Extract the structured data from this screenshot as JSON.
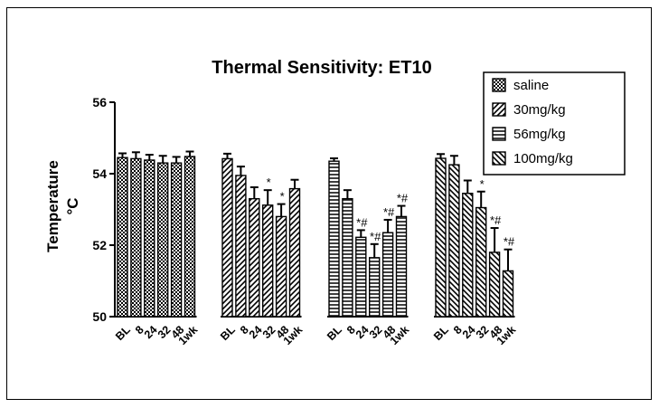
{
  "chart_data": {
    "type": "bar",
    "title": "Thermal Sensitivity: ET10",
    "ylabel_line1": "Temperature",
    "ylabel_line2": "°C",
    "xlabel": "",
    "ylim": [
      50,
      56
    ],
    "yticks": [
      50,
      52,
      54,
      56
    ],
    "categories": [
      "BL",
      "8",
      "24",
      "32",
      "48",
      "1wk"
    ],
    "series": [
      {
        "name": "saline",
        "pattern": "checker",
        "values": [
          54.45,
          54.42,
          54.38,
          54.3,
          54.3,
          54.48
        ],
        "errors": [
          0.12,
          0.18,
          0.15,
          0.2,
          0.17,
          0.14
        ],
        "annotations": [
          "",
          "",
          "",
          "",
          "",
          ""
        ]
      },
      {
        "name": "30mg/kg",
        "pattern": "diagonal",
        "values": [
          54.42,
          53.95,
          53.3,
          53.12,
          52.8,
          53.58
        ],
        "errors": [
          0.14,
          0.25,
          0.32,
          0.42,
          0.35,
          0.25
        ],
        "annotations": [
          "",
          "",
          "",
          "*",
          "*",
          ""
        ]
      },
      {
        "name": "56mg/kg",
        "pattern": "horizontal",
        "values": [
          54.35,
          53.3,
          52.22,
          51.65,
          52.35,
          52.8
        ],
        "errors": [
          0.08,
          0.24,
          0.2,
          0.38,
          0.36,
          0.3
        ],
        "annotations": [
          "",
          "",
          "*#",
          "*#",
          "*#",
          "*#"
        ]
      },
      {
        "name": "100mg/kg",
        "pattern": "backdiag",
        "values": [
          54.43,
          54.25,
          53.45,
          53.05,
          51.8,
          51.28
        ],
        "errors": [
          0.12,
          0.25,
          0.36,
          0.45,
          0.68,
          0.6
        ],
        "annotations": [
          "",
          "",
          "",
          "*",
          "*#",
          "*#"
        ]
      }
    ],
    "legend": "top-right",
    "grid": false
  }
}
